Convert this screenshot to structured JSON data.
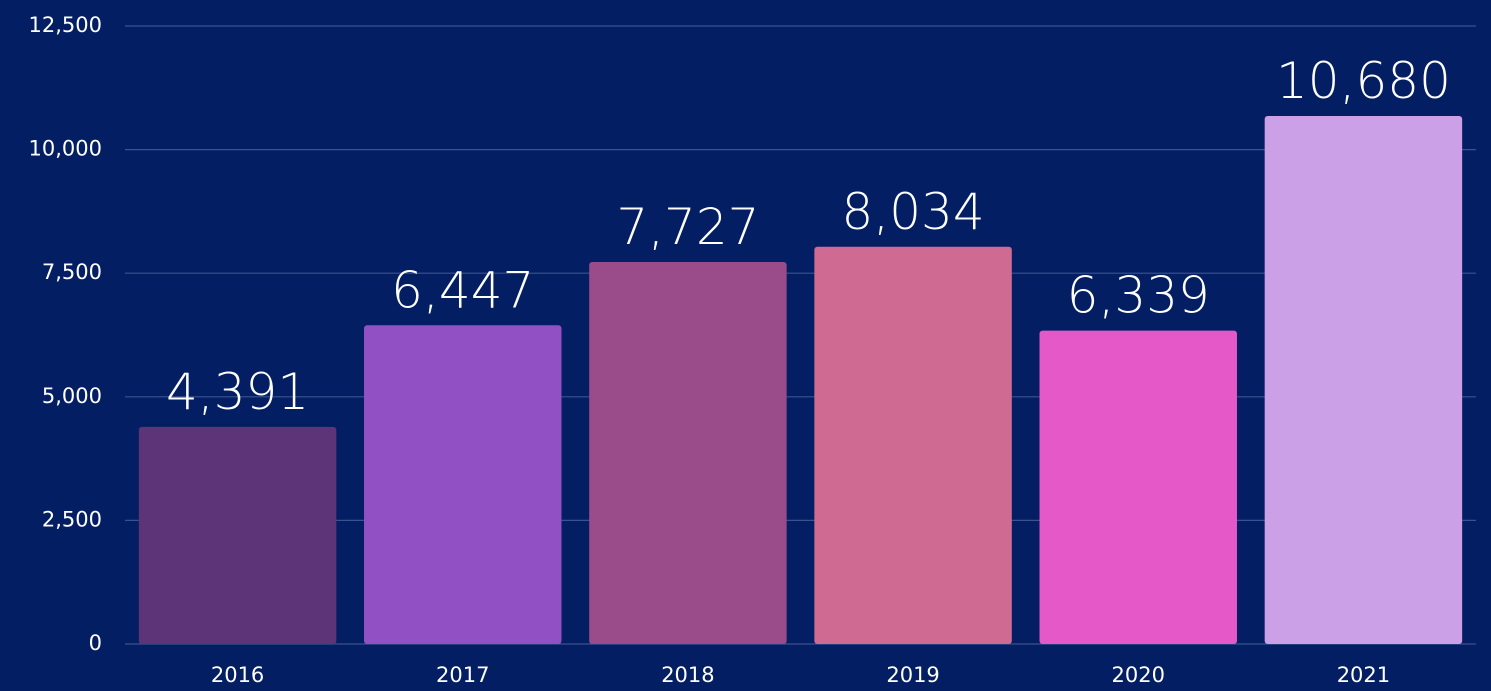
{
  "chart_data": {
    "type": "bar",
    "categories": [
      "2016",
      "2017",
      "2018",
      "2019",
      "2020",
      "2021"
    ],
    "values": [
      4391,
      6447,
      7727,
      8034,
      6339,
      10680
    ],
    "value_labels": [
      "4,391",
      "6,447",
      "7,727",
      "8,034",
      "6,339",
      "10,680"
    ],
    "colors": [
      "#5e3479",
      "#9150c3",
      "#9a4b89",
      "#cf6b92",
      "#e458c8",
      "#cca0e6"
    ],
    "ylim": [
      0,
      12500
    ],
    "yticks": [
      0,
      {
        "value": 2500,
        "label": "2,500"
      },
      {
        "value": 5000,
        "label": "5,000"
      },
      {
        "value": 7500,
        "label": "7,500"
      },
      {
        "value": 10000,
        "label": "10,000"
      },
      {
        "value": 12500,
        "label": "12,500"
      }
    ],
    "grid": true
  }
}
